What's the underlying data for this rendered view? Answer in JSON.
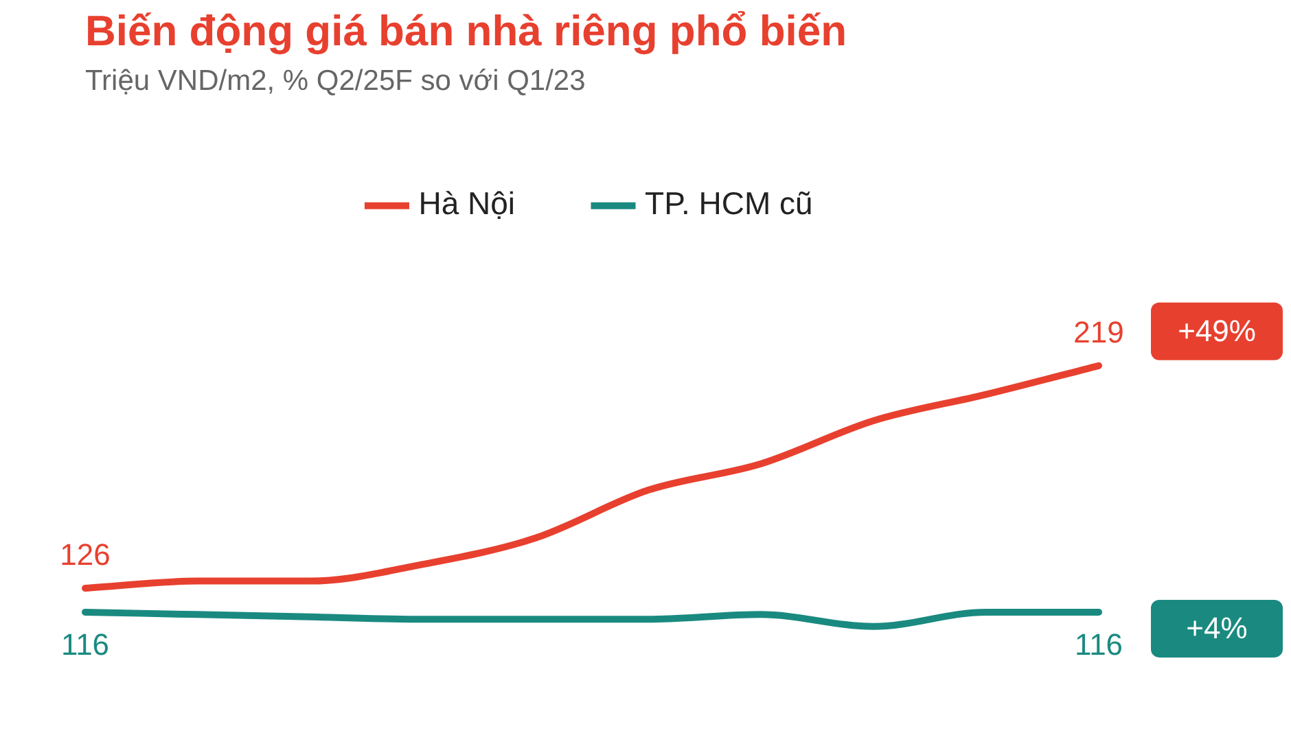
{
  "chart_data": {
    "type": "line",
    "title": "Biến động giá bán nhà riêng phổ biến",
    "subtitle": "Triệu VND/m2, % Q2/25F so với Q1/23",
    "categories": [
      null,
      null,
      null,
      null,
      null,
      null,
      null,
      null,
      null,
      null
    ],
    "series": [
      {
        "name": "Hà Nội",
        "color": "#e8402f",
        "values": [
          126,
          129,
          129,
          136,
          147,
          167,
          178,
          196,
          207,
          219
        ],
        "value_labels": [
          "126",
          null,
          null,
          null,
          null,
          null,
          null,
          null,
          null,
          "219"
        ]
      },
      {
        "name": "TP. HCM cũ",
        "color": "#1a8a80",
        "values": [
          116,
          115,
          114,
          113,
          113,
          113,
          115,
          110,
          116,
          116
        ],
        "value_labels": [
          "116",
          null,
          null,
          null,
          null,
          null,
          null,
          null,
          null,
          "116"
        ]
      }
    ],
    "annotations": [
      "+49%",
      "+4%"
    ],
    "legend": "top",
    "marker": "none",
    "line_style": "solid"
  }
}
